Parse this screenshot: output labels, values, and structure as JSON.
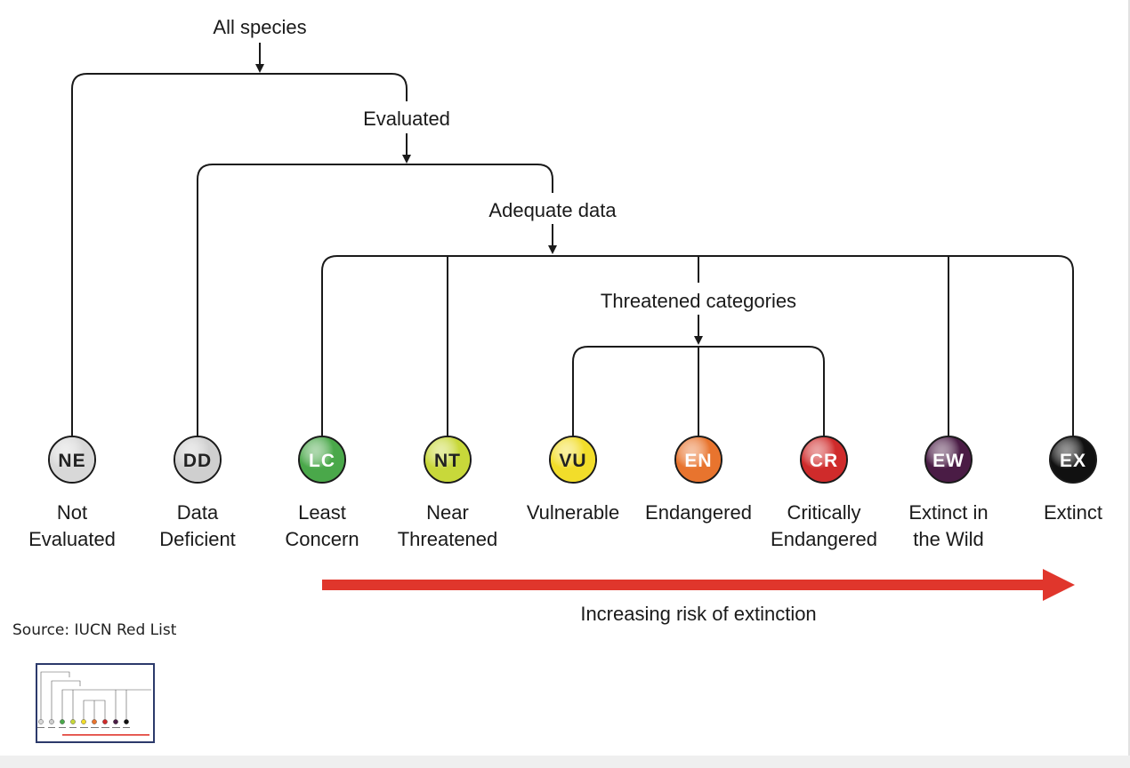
{
  "diagram": {
    "branch_labels": {
      "all_species": "All species",
      "evaluated": "Evaluated",
      "adequate_data": "Adequate data",
      "threatened": "Threatened categories"
    },
    "categories": [
      {
        "code": "NE",
        "line1": "Not",
        "line2": "Evaluated",
        "color": "#d8d8d8",
        "text_color": "#222222"
      },
      {
        "code": "DD",
        "line1": "Data",
        "line2": "Deficient",
        "color": "#cfcfcf",
        "text_color": "#222222"
      },
      {
        "code": "LC",
        "line1": "Least",
        "line2": "Concern",
        "color": "#4aa84a",
        "text_color": "#ffffff"
      },
      {
        "code": "NT",
        "line1": "Near",
        "line2": "Threatened",
        "color": "#c8d83a",
        "text_color": "#222222"
      },
      {
        "code": "VU",
        "line1": "Vulnerable",
        "line2": "",
        "color": "#f2dd2a",
        "text_color": "#222222"
      },
      {
        "code": "EN",
        "line1": "Endangered",
        "line2": "",
        "color": "#e8742e",
        "text_color": "#ffffff"
      },
      {
        "code": "CR",
        "line1": "Critically",
        "line2": "Endangered",
        "color": "#cf2b2b",
        "text_color": "#ffffff"
      },
      {
        "code": "EW",
        "line1": "Extinct in",
        "line2": "the Wild",
        "color": "#4a1c45",
        "text_color": "#ffffff"
      },
      {
        "code": "EX",
        "line1": "Extinct",
        "line2": "",
        "color": "#111111",
        "text_color": "#ffffff"
      }
    ],
    "risk_label": "Increasing risk of extinction",
    "risk_color": "#e0362c",
    "line_color": "#1a1a1a"
  },
  "source": "Source: IUCN Red List"
}
